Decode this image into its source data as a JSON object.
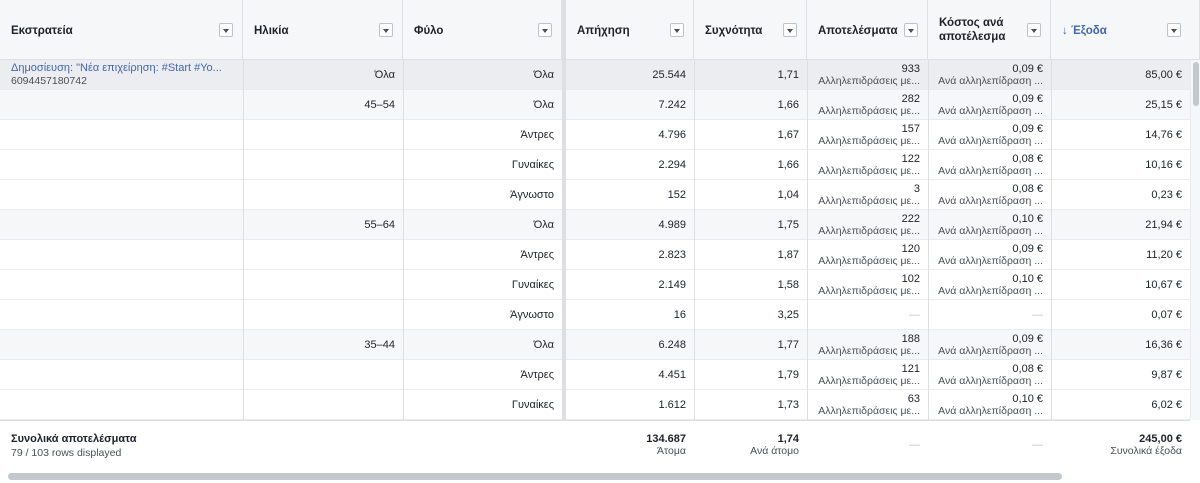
{
  "columns": [
    {
      "label": "Εκστρατεία"
    },
    {
      "label": "Ηλικία"
    },
    {
      "label": "Φύλο"
    },
    {
      "label": "Απήχηση"
    },
    {
      "label": "Συχνότητα"
    },
    {
      "label": "Αποτελέσματα"
    },
    {
      "label": "Κόστος ανά αποτέλεσμα"
    },
    {
      "label": "↓ Έξοδα"
    }
  ],
  "campaign": {
    "name": "Δημοσίευση: \"Νέα επιχείρηση: #Start #Yo...",
    "id": "6094457180742"
  },
  "rows": [
    {
      "age": "Όλα",
      "gender": "Όλα",
      "reach": "25.544",
      "freq": "1,71",
      "res": "933",
      "res_sub": "Αλληλεπιδράσεις με...",
      "cost": "0,09 €",
      "cost_sub": "Ανά αλληλεπίδραση ...",
      "spend": "85,00 €"
    },
    {
      "age": "45–54",
      "gender": "Όλα",
      "reach": "7.242",
      "freq": "1,66",
      "res": "282",
      "res_sub": "Αλληλεπιδράσεις με...",
      "cost": "0,09 €",
      "cost_sub": "Ανά αλληλεπίδραση ...",
      "spend": "25,15 €"
    },
    {
      "age": "",
      "gender": "Άντρες",
      "reach": "4.796",
      "freq": "1,67",
      "res": "157",
      "res_sub": "Αλληλεπιδράσεις με...",
      "cost": "0,09 €",
      "cost_sub": "Ανά αλληλεπίδραση ...",
      "spend": "14,76 €"
    },
    {
      "age": "",
      "gender": "Γυναίκες",
      "reach": "2.294",
      "freq": "1,66",
      "res": "122",
      "res_sub": "Αλληλεπιδράσεις με...",
      "cost": "0,08 €",
      "cost_sub": "Ανά αλληλεπίδραση ...",
      "spend": "10,16 €"
    },
    {
      "age": "",
      "gender": "Άγνωστο",
      "reach": "152",
      "freq": "1,04",
      "res": "3",
      "res_sub": "Αλληλεπιδράσεις με...",
      "cost": "0,08 €",
      "cost_sub": "Ανά αλληλεπίδραση ...",
      "spend": "0,23 €"
    },
    {
      "age": "55–64",
      "gender": "Όλα",
      "reach": "4.989",
      "freq": "1,75",
      "res": "222",
      "res_sub": "Αλληλεπιδράσεις με...",
      "cost": "0,10 €",
      "cost_sub": "Ανά αλληλεπίδραση ...",
      "spend": "21,94 €"
    },
    {
      "age": "",
      "gender": "Άντρες",
      "reach": "2.823",
      "freq": "1,87",
      "res": "120",
      "res_sub": "Αλληλεπιδράσεις με...",
      "cost": "0,09 €",
      "cost_sub": "Ανά αλληλεπίδραση ...",
      "spend": "11,20 €"
    },
    {
      "age": "",
      "gender": "Γυναίκες",
      "reach": "2.149",
      "freq": "1,58",
      "res": "102",
      "res_sub": "Αλληλεπιδράσεις με...",
      "cost": "0,10 €",
      "cost_sub": "Ανά αλληλεπίδραση ...",
      "spend": "10,67 €"
    },
    {
      "age": "",
      "gender": "Άγνωστο",
      "reach": "16",
      "freq": "3,25",
      "res": "—",
      "res_sub": "",
      "cost": "—",
      "cost_sub": "",
      "spend": "0,07 €"
    },
    {
      "age": "35–44",
      "gender": "Όλα",
      "reach": "6.248",
      "freq": "1,77",
      "res": "188",
      "res_sub": "Αλληλεπιδράσεις με...",
      "cost": "0,09 €",
      "cost_sub": "Ανά αλληλεπίδραση ...",
      "spend": "16,36 €"
    },
    {
      "age": "",
      "gender": "Άντρες",
      "reach": "4.451",
      "freq": "1,79",
      "res": "121",
      "res_sub": "Αλληλεπιδράσεις με...",
      "cost": "0,08 €",
      "cost_sub": "Ανά αλληλεπίδραση ...",
      "spend": "9,87 €"
    },
    {
      "age": "",
      "gender": "Γυναίκες",
      "reach": "1.612",
      "freq": "1,73",
      "res": "63",
      "res_sub": "Αλληλεπιδράσεις με...",
      "cost": "0,10 €",
      "cost_sub": "Ανά αλληλεπίδραση ...",
      "spend": "6,02 €"
    }
  ],
  "totals": {
    "title": "Συνολικά αποτελέσματα",
    "rows_displayed": "79 / 103 rows displayed",
    "reach": "134.687",
    "reach_sub": "Άτομα",
    "freq": "1,74",
    "freq_sub": "Ανά άτομο",
    "res": "—",
    "cost": "—",
    "spend": "245,00 €",
    "spend_sub": "Συνολικά έξοδα"
  },
  "colors": {
    "link": "#4267b2",
    "header_bg": "#f6f7f9",
    "border": "#dddfe2"
  }
}
